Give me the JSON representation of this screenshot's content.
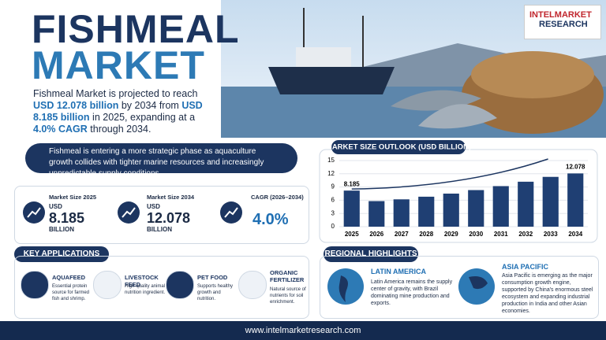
{
  "logo": {
    "line1": "INTELMARKET",
    "line2": "RESEARCH"
  },
  "header": {
    "title1": "FISHMEAL",
    "title2": "MARKET",
    "summary": [
      {
        "text": "Fishmeal Market is projected to reach",
        "bold": false
      },
      {
        "text": "USD 12.078 billion",
        "bold": true
      },
      {
        "text": "by 2034 from",
        "bold": false
      },
      {
        "text": "USD 8.185 billion",
        "bold": true
      },
      {
        "text": "in 2025, expanding at a",
        "bold": false
      },
      {
        "text": "4.0% CAGR",
        "bold": true
      },
      {
        "text": "through 2034.",
        "bold": false
      }
    ]
  },
  "quote": "Fishmeal is entering a more strategic phase as aquaculture growth collides with tighter marine resources and increasingly unpredictable supply conditions.",
  "stats": [
    {
      "label": "Market Size 2025",
      "unit": "USD",
      "value": "8.185",
      "scale": "BILLION"
    },
    {
      "label": "Market Size 2034",
      "unit": "USD",
      "value": "12.078",
      "scale": "BILLION"
    },
    {
      "label": "CAGR (2026–2034)",
      "value": "4.0%"
    }
  ],
  "applications": {
    "title": "KEY APPLICATIONS",
    "items": [
      {
        "name": "AQUAFEED",
        "text": "Essential protein source for farmed fish and shrimp."
      },
      {
        "name": "LIVESTOCK FEED",
        "text": "High-quality animal nutrition ingredient."
      },
      {
        "name": "PET FOOD",
        "text": "Supports healthy growth and nutrition."
      },
      {
        "name": "ORGANIC FERTILIZER",
        "text": "Natural source of nutrients for soil enrichment."
      }
    ]
  },
  "regions": {
    "title": "REGIONAL HIGHLIGHTS",
    "items": [
      {
        "name": "LATIN AMERICA",
        "text": "Latin America remains the supply center of gravity, with Brazil dominating mine production and exports."
      },
      {
        "name": "ASIA PACIFIC",
        "text": "Asia Pacific is emerging as the major consumption growth engine, supported by China's enormous steel ecosystem and expanding industrial production in India and other Asian economies."
      }
    ]
  },
  "footer": {
    "url": "www.intelmarketresearch.com"
  },
  "chart_data": {
    "type": "bar",
    "title": "MARKET SIZE OUTLOOK (USD BILLION)",
    "categories": [
      "2025",
      "2026",
      "2027",
      "2028",
      "2029",
      "2030",
      "2031",
      "2032",
      "2033",
      "2034"
    ],
    "values": [
      8.185,
      5.8,
      6.2,
      6.8,
      7.5,
      8.3,
      9.2,
      10.2,
      11.3,
      12.078
    ],
    "color": "#1f3f73",
    "ylim": [
      0,
      15
    ],
    "yticks": [
      0,
      3,
      6,
      9,
      12,
      15
    ],
    "grid": true
  }
}
